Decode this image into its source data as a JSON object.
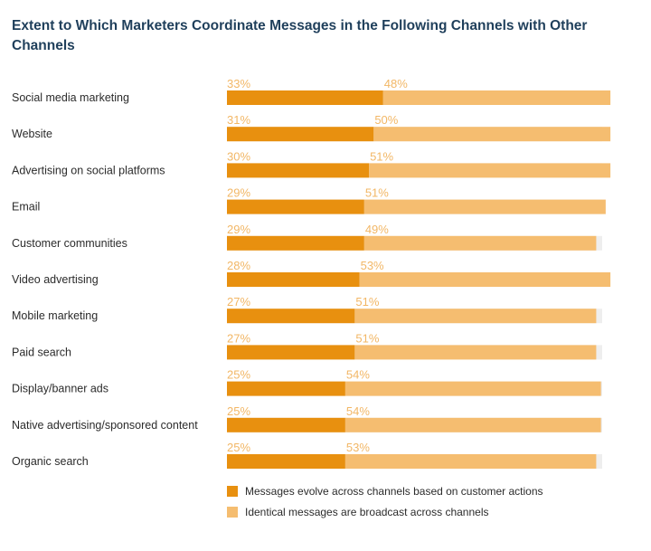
{
  "title": "Extent to Which Marketers Coordinate Messages in the Following Channels with Other Channels",
  "chart_data": {
    "type": "bar",
    "orientation": "horizontal",
    "stacked": true,
    "title": "Extent to Which Marketers Coordinate Messages in the Following Channels with Other Channels",
    "xlim": [
      0,
      100
    ],
    "value_format": "percent",
    "categories": [
      "Social media marketing",
      "Website",
      "Advertising on social platforms",
      "Email",
      "Customer communities",
      "Video advertising",
      "Mobile marketing",
      "Paid search",
      "Display/banner ads",
      "Native advertising/sponsored content",
      "Organic search"
    ],
    "series": [
      {
        "name": "Messages evolve across channels based on customer actions",
        "color": "#e8900f",
        "values": [
          33,
          31,
          30,
          29,
          29,
          28,
          27,
          27,
          25,
          25,
          25
        ]
      },
      {
        "name": "Identical messages are broadcast across channels",
        "color": "#f5bd70",
        "values": [
          48,
          50,
          51,
          51,
          49,
          53,
          51,
          51,
          54,
          54,
          53
        ]
      }
    ],
    "track_color": "#eeeeee",
    "legend": {
      "position": "bottom"
    }
  }
}
